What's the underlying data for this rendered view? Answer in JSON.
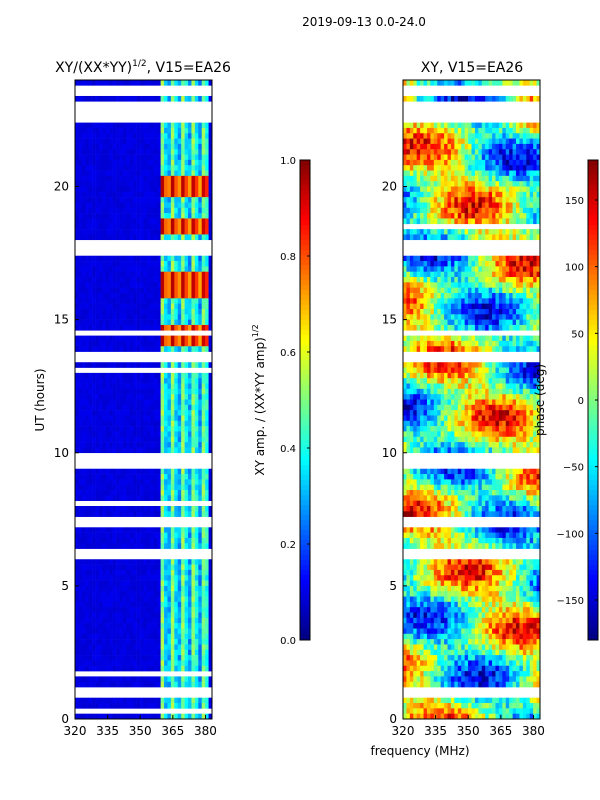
{
  "figure": {
    "suptitle": "2019-09-13 0.0-24.0",
    "shared_xlabel": "frequency (MHz)"
  },
  "chart_data": [
    {
      "type": "heatmap",
      "title": "XY/(XX*YY)",
      "title_sup": "1/2",
      "title_suffix": ", V15=EA26",
      "xlabel": "",
      "ylabel": "UT (hours)",
      "xlim": [
        320,
        383
      ],
      "ylim": [
        0,
        24
      ],
      "x_ticks": [
        320,
        335,
        350,
        365,
        380
      ],
      "y_ticks": [
        0,
        5,
        10,
        15,
        20
      ],
      "colormap": "jet",
      "colorbar": {
        "label": "XY amp. / (XX*YY amp)",
        "label_sup": "1/2",
        "range": [
          0.0,
          1.0
        ],
        "ticks": [
          "0.0",
          "0.2",
          "0.4",
          "0.6",
          "0.8",
          "1.0"
        ]
      },
      "features": {
        "background_level": 0.08,
        "active_band_mhz": [
          359,
          382
        ],
        "high_value_hours": [
          16.2,
          16.5,
          18.5,
          14.4,
          20.0
        ],
        "flagged_hours": [
          0.85,
          1.0,
          1.1,
          6.2,
          7.3,
          7.5,
          9.6,
          9.8,
          13.5,
          13.7,
          17.6,
          17.8,
          22.5,
          22.8,
          23.1,
          23.6
        ]
      }
    },
    {
      "type": "heatmap",
      "title": "XY, V15=EA26",
      "xlabel": "frequency (MHz)",
      "ylabel": "",
      "xlim": [
        320,
        383
      ],
      "ylim": [
        0,
        24
      ],
      "x_ticks": [
        320,
        335,
        350,
        365,
        380
      ],
      "y_ticks": [
        0,
        5,
        10,
        15,
        20
      ],
      "colormap": "jet",
      "colorbar": {
        "label": "phase (deg)",
        "range": [
          -180,
          180
        ],
        "ticks": [
          "−150",
          "−100",
          "−50",
          "0",
          "50",
          "100",
          "150"
        ]
      },
      "features": {
        "value_range_deg": [
          -180,
          180
        ],
        "flagged_hours": [
          0.85,
          1.0,
          1.1,
          6.2,
          7.3,
          7.5,
          9.6,
          9.8,
          13.5,
          13.7,
          17.6,
          17.8,
          22.5,
          22.8,
          23.1,
          23.6
        ]
      }
    }
  ]
}
